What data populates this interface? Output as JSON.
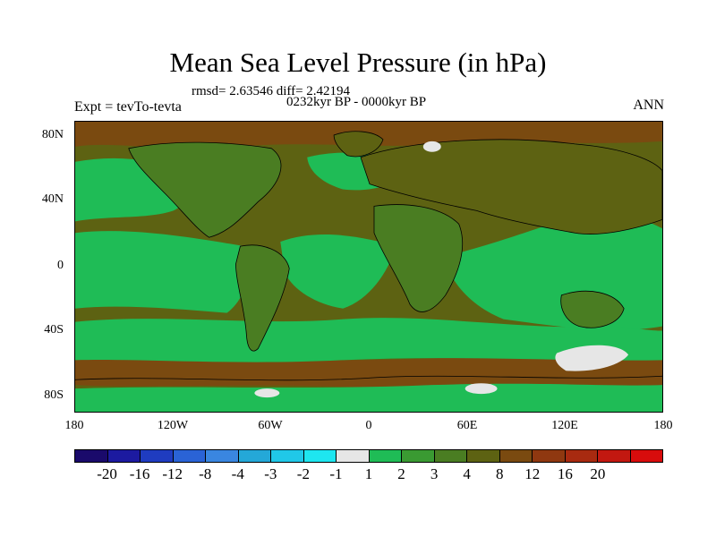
{
  "title": "Mean Sea Level Pressure (in hPa)",
  "stats": "rmsd= 2.63546 diff= 2.42194",
  "period": "0232kyr BP - 0000kyr BP",
  "experiment": "Expt = tevTo-tevta",
  "season": "ANN",
  "y_axis_labels": [
    "80N",
    "40N",
    "0",
    "40S",
    "80S"
  ],
  "x_axis_labels": [
    "180",
    "120W",
    "60W",
    "0",
    "60E",
    "120E",
    "180"
  ],
  "colorbar": {
    "colors": [
      "#1a0a6b",
      "#1c1aa0",
      "#1f3cc0",
      "#2a63d6",
      "#3a86e0",
      "#24a8d8",
      "#20c8e8",
      "#1ee6f0",
      "#e6e6e6",
      "#1fbc56",
      "#3a9a32",
      "#4a7d22",
      "#5d6212",
      "#7a4a10",
      "#8f3810",
      "#a82a10",
      "#c21810",
      "#d80c0c"
    ],
    "labels": [
      "-20",
      "-16",
      "-12",
      "-8",
      "-4",
      "-3",
      "-2",
      "-1",
      "1",
      "2",
      "3",
      "4",
      "8",
      "12",
      "16",
      "20"
    ]
  },
  "map_colors": {
    "high": "#5d6212",
    "mid_high": "#4a7d22",
    "neutral": "#1fbc56",
    "strong_high": "#7a4a10",
    "near_zero": "#e6e6e6",
    "coast": "#000000"
  }
}
